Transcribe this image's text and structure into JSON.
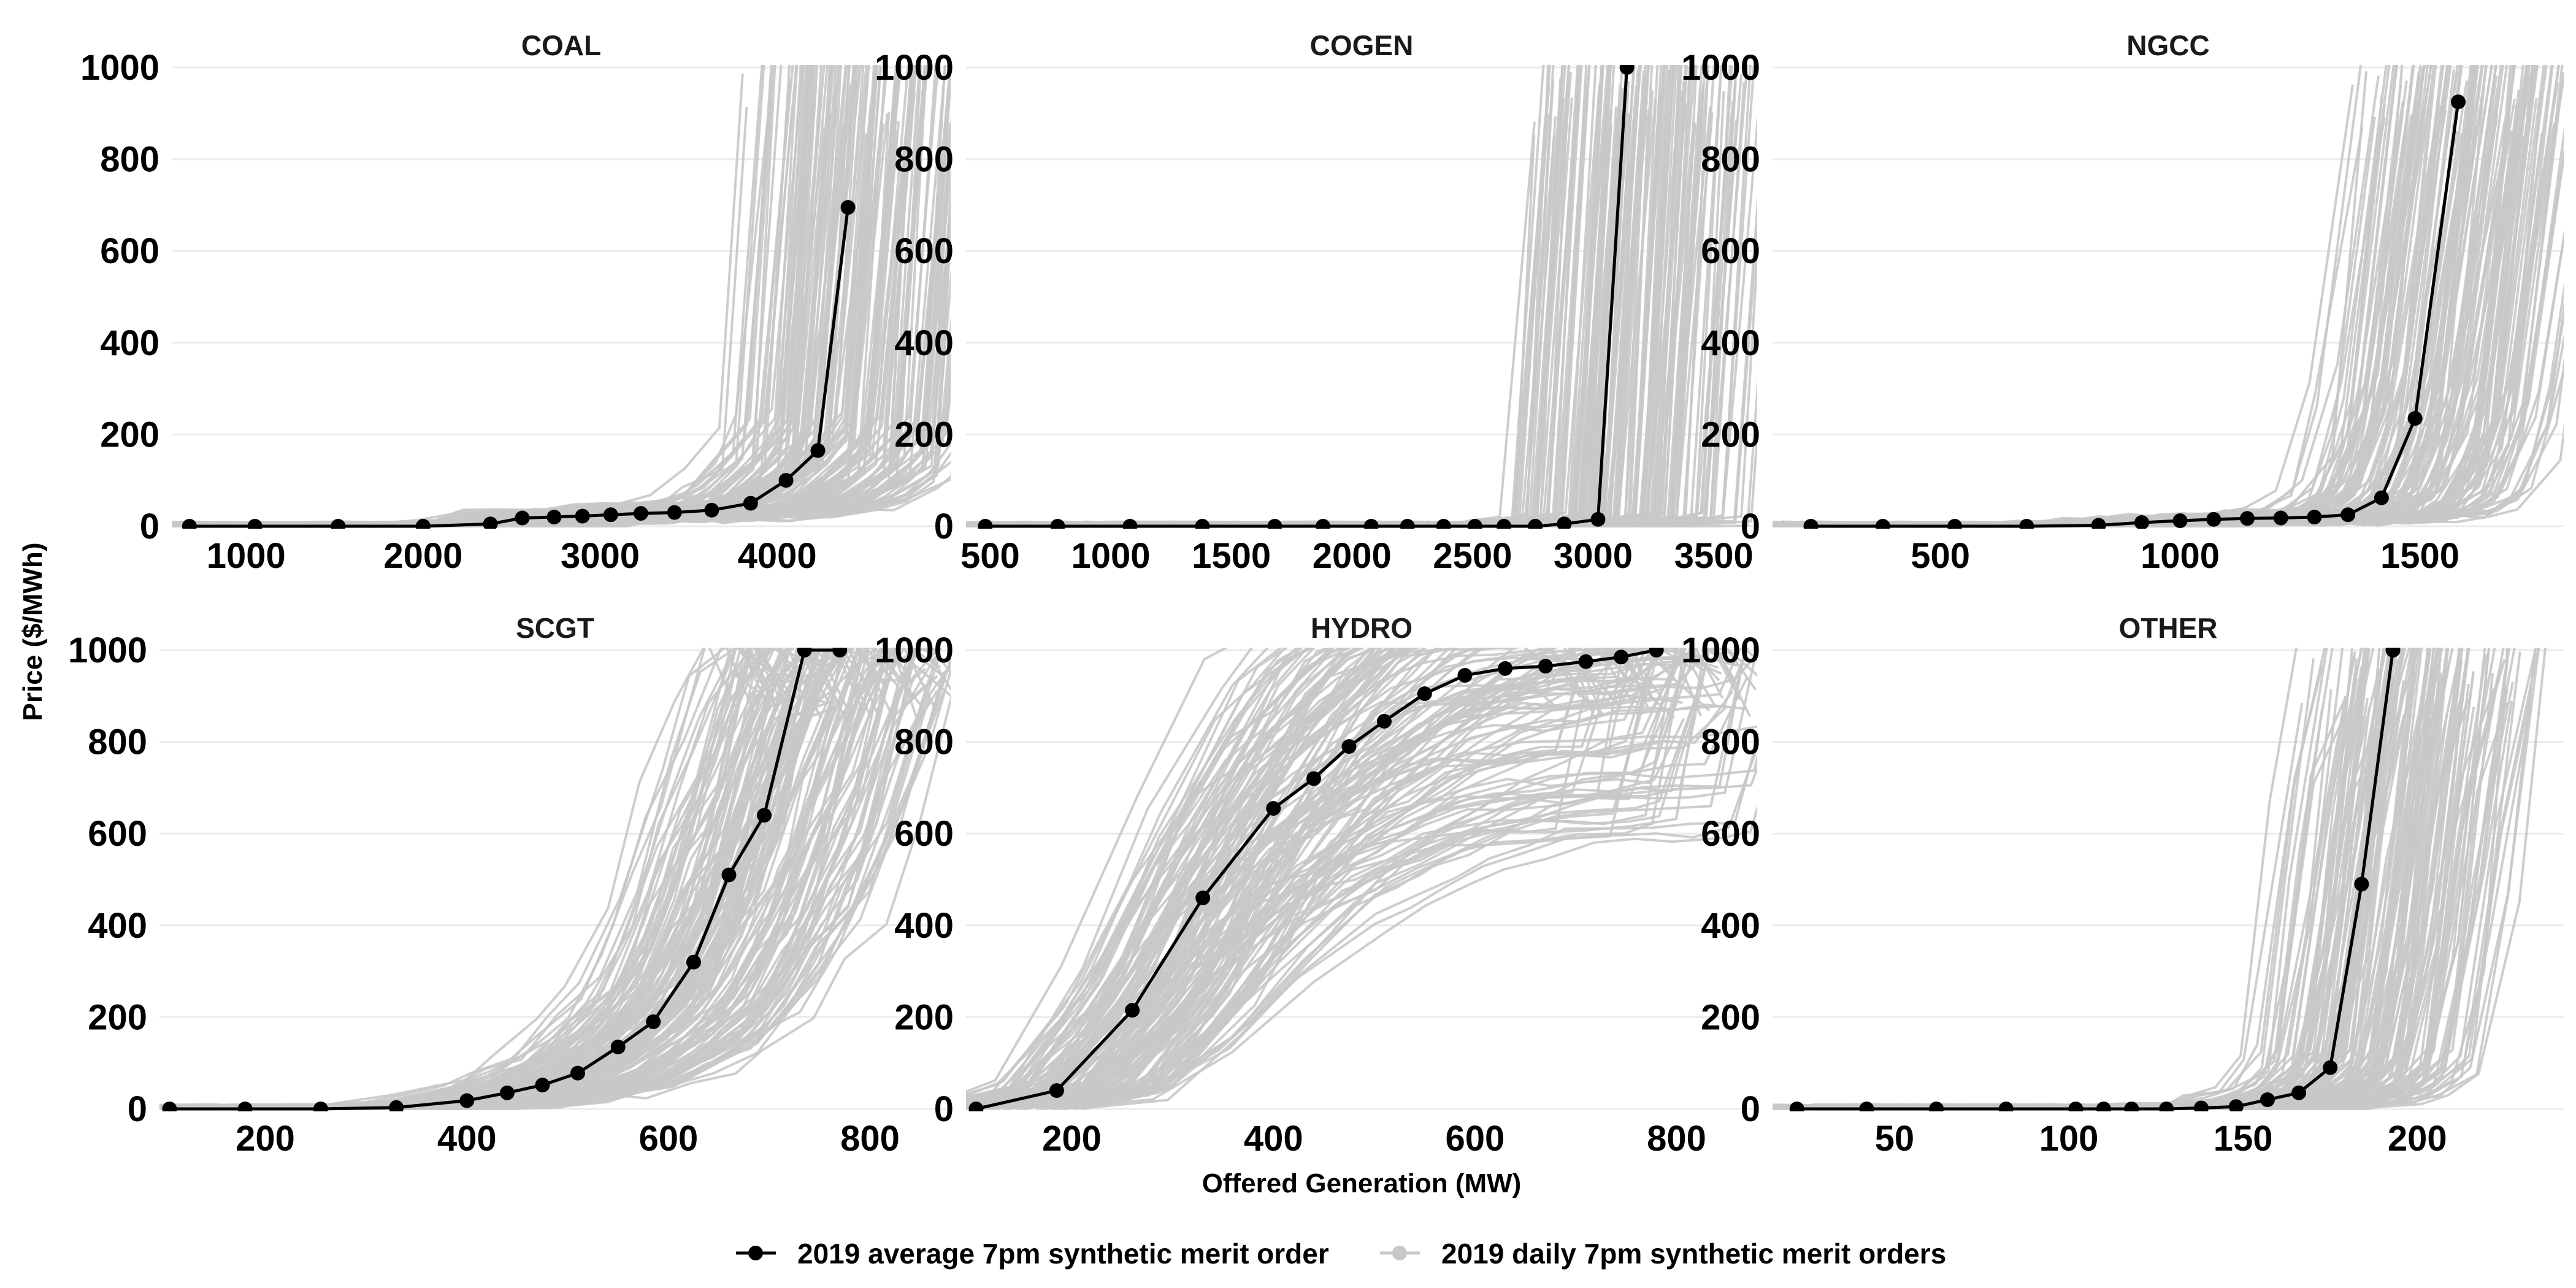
{
  "chart_data": {
    "type": "line",
    "layout": "facet-grid 2x3",
    "xlabel": "Offered Generation (MW)",
    "ylabel": "Price ($/MWh)",
    "ylim": [
      0,
      1000
    ],
    "yticks": [
      0,
      200,
      400,
      600,
      800,
      1000
    ],
    "grid": true,
    "legend_position": "bottom",
    "series_styles": [
      {
        "name": "2019 average 7pm synthetic merit order",
        "color": "#000000"
      },
      {
        "name": "2019 daily 7pm synthetic merit orders",
        "color": "#c8c8c8"
      }
    ],
    "panels": [
      {
        "title": "COAL",
        "xlim": [
          580,
          4980
        ],
        "xticks": [
          1000,
          2000,
          3000,
          4000
        ],
        "average": {
          "x": [
            680,
            1050,
            1520,
            2000,
            2380,
            2560,
            2740,
            2900,
            3060,
            3230,
            3420,
            3630,
            3850,
            4050,
            4230,
            4400
          ],
          "y": [
            0,
            0,
            0,
            0,
            5,
            18,
            20,
            22,
            25,
            28,
            30,
            35,
            50,
            100,
            165,
            695
          ]
        }
      },
      {
        "title": "COGEN",
        "xlim": [
          400,
          3680
        ],
        "xticks": [
          500,
          1000,
          1500,
          2000,
          2500,
          3000,
          3500
        ],
        "average": {
          "x": [
            480,
            780,
            1080,
            1380,
            1680,
            1880,
            2080,
            2230,
            2380,
            2510,
            2630,
            2760,
            2880,
            3020,
            3140
          ],
          "y": [
            0,
            0,
            0,
            0,
            0,
            0,
            0,
            0,
            0,
            0,
            0,
            0,
            5,
            15,
            1000
          ]
        }
      },
      {
        "title": "NGCC",
        "xlim": [
          150,
          1800
        ],
        "xticks": [
          500,
          1000,
          1500
        ],
        "average": {
          "x": [
            230,
            380,
            530,
            680,
            830,
            920,
            1000,
            1070,
            1140,
            1210,
            1280,
            1350,
            1420,
            1490,
            1580
          ],
          "y": [
            0,
            0,
            0,
            0,
            2,
            8,
            12,
            15,
            17,
            18,
            20,
            25,
            62,
            235,
            925
          ]
        }
      },
      {
        "title": "SCGT",
        "xlim": [
          95,
          880
        ],
        "xticks": [
          200,
          400,
          600,
          800
        ],
        "average": {
          "x": [
            105,
            180,
            255,
            330,
            400,
            440,
            475,
            510,
            550,
            585,
            625,
            660,
            695,
            735,
            770
          ],
          "y": [
            0,
            0,
            0,
            3,
            18,
            35,
            52,
            78,
            135,
            190,
            320,
            510,
            640,
            1000,
            1000
          ]
        }
      },
      {
        "title": "HYDRO",
        "xlim": [
          95,
          880
        ],
        "xticks": [
          200,
          400,
          600,
          800
        ],
        "average": {
          "x": [
            105,
            185,
            260,
            330,
            400,
            440,
            475,
            510,
            550,
            590,
            630,
            670,
            710,
            745,
            780
          ],
          "y": [
            0,
            40,
            215,
            460,
            655,
            720,
            790,
            845,
            905,
            945,
            960,
            965,
            975,
            985,
            1000
          ]
        }
      },
      {
        "title": "OTHER",
        "xlim": [
          15,
          242
        ],
        "xticks": [
          50,
          100,
          150,
          200
        ],
        "average": {
          "x": [
            22,
            42,
            62,
            82,
            102,
            110,
            118,
            128,
            138,
            148,
            157,
            166,
            175,
            184,
            193
          ],
          "y": [
            0,
            0,
            0,
            0,
            0,
            0,
            0,
            0,
            2,
            5,
            20,
            35,
            90,
            490,
            1000
          ]
        }
      }
    ]
  }
}
